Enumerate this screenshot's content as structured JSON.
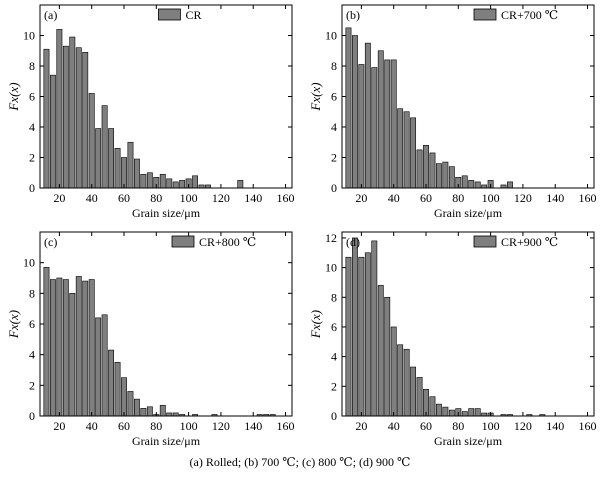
{
  "figure": {
    "caption": "(a)  Rolled;  (b) 700  ℃; (c) 800  ℃; (d) 900  ℃"
  },
  "colors": {
    "bar": "#7f7f7f",
    "edge": "#000000",
    "background": "#ffffff"
  },
  "chart_data": [
    {
      "type": "bar",
      "panel_label": "(a)",
      "legend": "CR",
      "legend_position": "top-center",
      "xlabel": "Grain size/μm",
      "ylabel": "Fx(x)",
      "xlim": [
        8,
        164
      ],
      "ylim": [
        0,
        12
      ],
      "xticks": [
        20,
        40,
        60,
        80,
        100,
        120,
        140,
        160
      ],
      "yticks": [
        0,
        2,
        4,
        6,
        8,
        10
      ],
      "grid": false,
      "bin_width": 4,
      "x": [
        12,
        16,
        20,
        24,
        28,
        32,
        36,
        40,
        44,
        48,
        52,
        56,
        60,
        64,
        68,
        72,
        76,
        80,
        84,
        88,
        92,
        96,
        100,
        104,
        108,
        112,
        116,
        120,
        124,
        128,
        132,
        136,
        140,
        144,
        148,
        152,
        156,
        160
      ],
      "values": [
        9.1,
        7.4,
        10.4,
        9.3,
        9.9,
        9.2,
        8.9,
        6.2,
        3.9,
        5.4,
        3.9,
        2.6,
        2.0,
        3.0,
        1.9,
        0.9,
        1.0,
        0.7,
        0.9,
        0.6,
        0.4,
        0.5,
        0.6,
        0.8,
        0.2,
        0.2,
        0,
        0,
        0,
        0,
        0.5,
        0,
        0,
        0,
        0,
        0,
        0,
        0
      ]
    },
    {
      "type": "bar",
      "panel_label": "(b)",
      "legend": "CR+700 ℃",
      "legend_position": "top-right",
      "xlabel": "Grain size/μm",
      "ylabel": "Fx(x)",
      "xlim": [
        8,
        164
      ],
      "ylim": [
        0,
        12
      ],
      "xticks": [
        20,
        40,
        60,
        80,
        100,
        120,
        140,
        160
      ],
      "yticks": [
        0,
        2,
        4,
        6,
        8,
        10
      ],
      "grid": false,
      "bin_width": 4,
      "x": [
        12,
        16,
        20,
        24,
        28,
        32,
        36,
        40,
        44,
        48,
        52,
        56,
        60,
        64,
        68,
        72,
        76,
        80,
        84,
        88,
        92,
        96,
        100,
        104,
        108,
        112,
        116,
        120,
        124,
        128,
        132,
        136,
        140,
        144,
        148,
        152,
        156,
        160
      ],
      "values": [
        10.5,
        10.0,
        8.1,
        9.5,
        7.9,
        9.0,
        8.4,
        8.4,
        5.2,
        5.0,
        4.6,
        2.5,
        2.8,
        2.3,
        1.6,
        1.7,
        1.4,
        0.7,
        0.8,
        0.5,
        0.4,
        0.2,
        0.5,
        0,
        0.2,
        0.4,
        0,
        0,
        0,
        0,
        0,
        0,
        0,
        0,
        0,
        0,
        0,
        0
      ]
    },
    {
      "type": "bar",
      "panel_label": "(c)",
      "legend": "CR+800 ℃",
      "legend_position": "top-right",
      "xlabel": "Grain size/μm",
      "ylabel": "Fx(x)",
      "xlim": [
        8,
        164
      ],
      "ylim": [
        0,
        12
      ],
      "xticks": [
        20,
        40,
        60,
        80,
        100,
        120,
        140,
        160
      ],
      "yticks": [
        0,
        2,
        4,
        6,
        8,
        10
      ],
      "grid": false,
      "bin_width": 4,
      "x": [
        12,
        16,
        20,
        24,
        28,
        32,
        36,
        40,
        44,
        48,
        52,
        56,
        60,
        64,
        68,
        72,
        76,
        80,
        84,
        88,
        92,
        96,
        100,
        104,
        108,
        112,
        116,
        120,
        124,
        128,
        132,
        136,
        140,
        144,
        148,
        152,
        156,
        160
      ],
      "values": [
        9.7,
        8.9,
        9.0,
        8.9,
        8.0,
        9.1,
        8.8,
        8.9,
        6.4,
        6.6,
        4.3,
        3.5,
        2.5,
        1.6,
        1.1,
        0.5,
        0.6,
        0.1,
        0.7,
        0.2,
        0.2,
        0.1,
        0,
        0.1,
        0,
        0,
        0.1,
        0,
        0,
        0,
        0,
        0,
        0,
        0.1,
        0.1,
        0.1,
        0,
        0
      ]
    },
    {
      "type": "bar",
      "panel_label": "(d)",
      "legend": "CR+900 ℃",
      "legend_position": "top-right",
      "xlabel": "Grain size/μm",
      "ylabel": "Fx(x)",
      "xlim": [
        8,
        164
      ],
      "ylim": [
        0,
        12.4
      ],
      "xticks": [
        20,
        40,
        60,
        80,
        100,
        120,
        140,
        160
      ],
      "yticks": [
        0,
        2,
        4,
        6,
        8,
        10,
        12
      ],
      "grid": false,
      "bin_width": 4,
      "x": [
        12,
        16,
        20,
        24,
        28,
        32,
        36,
        40,
        44,
        48,
        52,
        56,
        60,
        64,
        68,
        72,
        76,
        80,
        84,
        88,
        92,
        96,
        100,
        104,
        108,
        112,
        116,
        120,
        124,
        128,
        132,
        136,
        140,
        144,
        148,
        152,
        156,
        160
      ],
      "values": [
        10.7,
        12.0,
        10.7,
        11.0,
        11.8,
        8.8,
        8.0,
        6.0,
        4.8,
        4.5,
        3.3,
        2.6,
        1.8,
        1.3,
        0.8,
        0.6,
        0.4,
        0.5,
        0.3,
        0.5,
        0.5,
        0.2,
        0.2,
        0,
        0.1,
        0.1,
        0,
        0,
        0.1,
        0,
        0.1,
        0,
        0,
        0,
        0,
        0,
        0,
        0
      ]
    }
  ]
}
